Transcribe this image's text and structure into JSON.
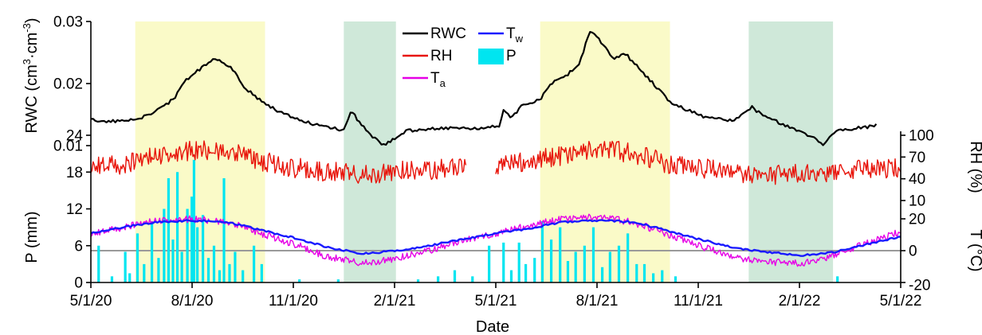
{
  "chart_data": {
    "type": "line",
    "xlabel": "Date",
    "x_ticks": [
      "5/1/20",
      "8/1/20",
      "11/1/20",
      "2/1/21",
      "5/1/21",
      "8/1/21",
      "11/1/21",
      "2/1/22",
      "5/1/22"
    ],
    "x_range": [
      "2020-05-01",
      "2022-05-01"
    ],
    "shaded_periods": [
      {
        "start": "2020-06-10",
        "end": "2020-10-05",
        "color": "#fafac8"
      },
      {
        "start": "2020-12-15",
        "end": "2021-01-31",
        "color": "#cfe8d9"
      },
      {
        "start": "2021-06-10",
        "end": "2021-10-05",
        "color": "#fafac8"
      },
      {
        "start": "2021-12-15",
        "end": "2022-03-01",
        "color": "#cfe8d9"
      }
    ],
    "panels": {
      "rwc": {
        "ylabel": "RWC (cm³·cm⁻³)",
        "ylabel_main": "RWC (cm",
        "ylabel_sup1": "3",
        "ylabel_mid": "·cm",
        "ylabel_sup2": "-3",
        "ylabel_end": ")",
        "y_ticks": [
          "0.01",
          "0.02",
          "0.03"
        ],
        "ylim": [
          0.01,
          0.03
        ]
      },
      "rh": {
        "ylabel": "RH (%)",
        "y_ticks": [
          "10",
          "40",
          "70",
          "100"
        ],
        "ylim": [
          10,
          100
        ]
      },
      "p": {
        "ylabel": "P (mm)",
        "y_ticks": [
          "0",
          "6",
          "12",
          "18",
          "24"
        ],
        "ylim": [
          0,
          24
        ]
      },
      "t": {
        "ylabel": "T (°C)",
        "y_ticks": [
          "-20",
          "0",
          "20"
        ],
        "ylim": [
          -20,
          20
        ],
        "reference_line": 0
      }
    },
    "legend": [
      {
        "label": "RWC",
        "sub": "",
        "color": "#000000",
        "kind": "line"
      },
      {
        "label": "T",
        "sub": "w",
        "color": "#1a1aff",
        "kind": "line"
      },
      {
        "label": "RH",
        "sub": "",
        "color": "#e8140a",
        "kind": "line"
      },
      {
        "label": "P",
        "sub": "",
        "color": "#00e5f0",
        "kind": "box"
      },
      {
        "label": "T",
        "sub": "a",
        "color": "#e600e6",
        "kind": "line"
      }
    ],
    "series": [
      {
        "name": "RWC",
        "axis": "rwc",
        "color": "#000000",
        "points": [
          [
            "2020-05-01",
            0.0141
          ],
          [
            "2020-05-20",
            0.0139
          ],
          [
            "2020-06-05",
            0.014
          ],
          [
            "2020-06-15",
            0.0145
          ],
          [
            "2020-06-25",
            0.0152
          ],
          [
            "2020-07-05",
            0.0164
          ],
          [
            "2020-07-15",
            0.0175
          ],
          [
            "2020-07-25",
            0.0205
          ],
          [
            "2020-08-01",
            0.0215
          ],
          [
            "2020-08-10",
            0.0227
          ],
          [
            "2020-08-20",
            0.024
          ],
          [
            "2020-08-28",
            0.0233
          ],
          [
            "2020-09-05",
            0.0225
          ],
          [
            "2020-09-15",
            0.0198
          ],
          [
            "2020-09-25",
            0.018
          ],
          [
            "2020-10-05",
            0.0168
          ],
          [
            "2020-10-20",
            0.0152
          ],
          [
            "2020-11-05",
            0.0143
          ],
          [
            "2020-11-20",
            0.0133
          ],
          [
            "2020-12-05",
            0.0128
          ],
          [
            "2020-12-15",
            0.0125
          ],
          [
            "2020-12-22",
            0.0158
          ],
          [
            "2020-12-28",
            0.014
          ],
          [
            "2021-01-10",
            0.0115
          ],
          [
            "2021-01-20",
            0.01
          ],
          [
            "2021-01-31",
            0.0112
          ],
          [
            "2021-02-10",
            0.0124
          ],
          [
            "2021-03-01",
            0.0127
          ],
          [
            "2021-04-01",
            0.0128
          ],
          [
            "2021-04-20",
            0.0129
          ],
          [
            "2021-05-05",
            0.0132
          ],
          [
            "2021-05-08",
            0.016
          ],
          [
            "2021-05-15",
            0.0145
          ],
          [
            "2021-05-25",
            0.0165
          ],
          [
            "2021-06-10",
            0.0175
          ],
          [
            "2021-06-20",
            0.02
          ],
          [
            "2021-07-05",
            0.0215
          ],
          [
            "2021-07-15",
            0.023
          ],
          [
            "2021-07-25",
            0.0285
          ],
          [
            "2021-08-05",
            0.0265
          ],
          [
            "2021-08-15",
            0.024
          ],
          [
            "2021-08-25",
            0.025
          ],
          [
            "2021-09-05",
            0.0228
          ],
          [
            "2021-09-15",
            0.021
          ],
          [
            "2021-09-25",
            0.019
          ],
          [
            "2021-10-05",
            0.017
          ],
          [
            "2021-10-20",
            0.0158
          ],
          [
            "2021-11-05",
            0.0146
          ],
          [
            "2021-12-01",
            0.014
          ],
          [
            "2021-12-18",
            0.0162
          ],
          [
            "2021-12-28",
            0.0148
          ],
          [
            "2022-01-10",
            0.0138
          ],
          [
            "2022-01-25",
            0.0127
          ],
          [
            "2022-02-10",
            0.0115
          ],
          [
            "2022-02-20",
            0.01
          ],
          [
            "2022-03-01",
            0.0122
          ],
          [
            "2022-03-20",
            0.0128
          ],
          [
            "2022-04-05",
            0.0131
          ],
          [
            "2022-04-10",
            0.0133
          ]
        ]
      },
      {
        "name": "RH",
        "axis": "rh",
        "color": "#e8140a",
        "points": [
          [
            "2020-05-01",
            55
          ],
          [
            "2020-06-01",
            60
          ],
          [
            "2020-07-01",
            72
          ],
          [
            "2020-08-01",
            80
          ],
          [
            "2020-09-01",
            78
          ],
          [
            "2020-10-01",
            65
          ],
          [
            "2020-11-01",
            55
          ],
          [
            "2020-12-01",
            50
          ],
          [
            "2021-01-01",
            45
          ],
          [
            "2021-02-01",
            50
          ],
          [
            "2021-03-01",
            52
          ],
          [
            "2021-04-01",
            55
          ],
          [
            "2021-05-01",
            60
          ],
          [
            "2021-06-01",
            65
          ],
          [
            "2021-07-01",
            72
          ],
          [
            "2021-08-01",
            80
          ],
          [
            "2021-09-01",
            76
          ],
          [
            "2021-10-01",
            62
          ],
          [
            "2021-11-01",
            55
          ],
          [
            "2021-12-01",
            50
          ],
          [
            "2022-01-01",
            45
          ],
          [
            "2022-02-01",
            48
          ],
          [
            "2022-03-01",
            50
          ],
          [
            "2022-04-01",
            55
          ],
          [
            "2022-05-01",
            55
          ]
        ],
        "gaps": [
          [
            "2021-04-05",
            "2021-04-30"
          ]
        ]
      },
      {
        "name": "Tw",
        "axis": "t",
        "color": "#1a1aff",
        "points": [
          [
            "2020-05-01",
            11
          ],
          [
            "2020-06-01",
            15
          ],
          [
            "2020-07-01",
            18
          ],
          [
            "2020-08-01",
            19
          ],
          [
            "2020-09-01",
            18
          ],
          [
            "2020-10-01",
            13
          ],
          [
            "2020-11-01",
            8
          ],
          [
            "2020-12-01",
            2
          ],
          [
            "2021-01-01",
            -2
          ],
          [
            "2021-02-01",
            0
          ],
          [
            "2021-03-01",
            3
          ],
          [
            "2021-04-01",
            7
          ],
          [
            "2021-05-01",
            11
          ],
          [
            "2021-06-01",
            14
          ],
          [
            "2021-07-01",
            18
          ],
          [
            "2021-08-01",
            19
          ],
          [
            "2021-09-01",
            18
          ],
          [
            "2021-10-01",
            13
          ],
          [
            "2021-11-01",
            7
          ],
          [
            "2021-12-01",
            2
          ],
          [
            "2022-01-01",
            -1
          ],
          [
            "2022-02-01",
            -3
          ],
          [
            "2022-03-01",
            -1
          ],
          [
            "2022-04-01",
            4
          ],
          [
            "2022-05-01",
            9
          ]
        ]
      },
      {
        "name": "Ta",
        "axis": "t",
        "color": "#e600e6",
        "points": [
          [
            "2020-05-01",
            10
          ],
          [
            "2020-06-01",
            15
          ],
          [
            "2020-07-01",
            19
          ],
          [
            "2020-08-01",
            20
          ],
          [
            "2020-09-01",
            18
          ],
          [
            "2020-10-01",
            11
          ],
          [
            "2020-11-01",
            4
          ],
          [
            "2020-12-01",
            -4
          ],
          [
            "2021-01-01",
            -8
          ],
          [
            "2021-02-01",
            -5
          ],
          [
            "2021-03-01",
            0
          ],
          [
            "2021-04-01",
            6
          ],
          [
            "2021-05-01",
            11
          ],
          [
            "2021-06-01",
            16
          ],
          [
            "2021-07-01",
            20
          ],
          [
            "2021-08-01",
            21
          ],
          [
            "2021-09-01",
            18
          ],
          [
            "2021-10-01",
            11
          ],
          [
            "2021-11-01",
            3
          ],
          [
            "2021-12-01",
            -4
          ],
          [
            "2022-01-01",
            -7
          ],
          [
            "2022-02-01",
            -8
          ],
          [
            "2022-03-01",
            -3
          ],
          [
            "2022-04-01",
            5
          ],
          [
            "2022-05-01",
            12
          ]
        ]
      },
      {
        "name": "P",
        "axis": "p",
        "type": "bar",
        "color": "#00e5f0",
        "points": [
          [
            "2020-05-08",
            6.0
          ],
          [
            "2020-05-20",
            1.0
          ],
          [
            "2020-06-01",
            5.0
          ],
          [
            "2020-06-05",
            1.5
          ],
          [
            "2020-06-12",
            8.0
          ],
          [
            "2020-06-18",
            3.0
          ],
          [
            "2020-06-25",
            10.0
          ],
          [
            "2020-07-01",
            4.0
          ],
          [
            "2020-07-06",
            12.0
          ],
          [
            "2020-07-10",
            17.0
          ],
          [
            "2020-07-14",
            7.0
          ],
          [
            "2020-07-18",
            18.0
          ],
          [
            "2020-07-22",
            5.0
          ],
          [
            "2020-07-27",
            12.0
          ],
          [
            "2020-07-31",
            14.0
          ],
          [
            "2020-08-02",
            20.0
          ],
          [
            "2020-08-05",
            9.0
          ],
          [
            "2020-08-10",
            11.0
          ],
          [
            "2020-08-15",
            4.0
          ],
          [
            "2020-08-20",
            6.0
          ],
          [
            "2020-08-25",
            2.0
          ],
          [
            "2020-08-29",
            17.0
          ],
          [
            "2020-09-03",
            3.0
          ],
          [
            "2020-09-08",
            5.0
          ],
          [
            "2020-09-15",
            2.0
          ],
          [
            "2020-09-25",
            6.0
          ],
          [
            "2020-10-02",
            3.0
          ],
          [
            "2020-11-05",
            0.5
          ],
          [
            "2020-12-10",
            0.5
          ],
          [
            "2021-02-20",
            0.5
          ],
          [
            "2021-03-10",
            1.0
          ],
          [
            "2021-03-25",
            2.0
          ],
          [
            "2021-04-10",
            1.0
          ],
          [
            "2021-04-25",
            6.0
          ],
          [
            "2021-05-08",
            6.5
          ],
          [
            "2021-05-15",
            2.0
          ],
          [
            "2021-05-22",
            6.5
          ],
          [
            "2021-05-28",
            3.0
          ],
          [
            "2021-06-05",
            4.0
          ],
          [
            "2021-06-12",
            10.0
          ],
          [
            "2021-06-20",
            7.0
          ],
          [
            "2021-06-28",
            9.0
          ],
          [
            "2021-07-05",
            3.5
          ],
          [
            "2021-07-12",
            5.0
          ],
          [
            "2021-07-20",
            6.0
          ],
          [
            "2021-07-28",
            9.0
          ],
          [
            "2021-08-05",
            2.5
          ],
          [
            "2021-08-12",
            5.0
          ],
          [
            "2021-08-20",
            6.0
          ],
          [
            "2021-08-28",
            8.0
          ],
          [
            "2021-09-05",
            3.0
          ],
          [
            "2021-09-12",
            3.0
          ],
          [
            "2021-09-20",
            1.5
          ],
          [
            "2021-09-28",
            2.0
          ],
          [
            "2021-10-10",
            1.0
          ],
          [
            "2022-03-05",
            1.0
          ]
        ]
      }
    ]
  }
}
